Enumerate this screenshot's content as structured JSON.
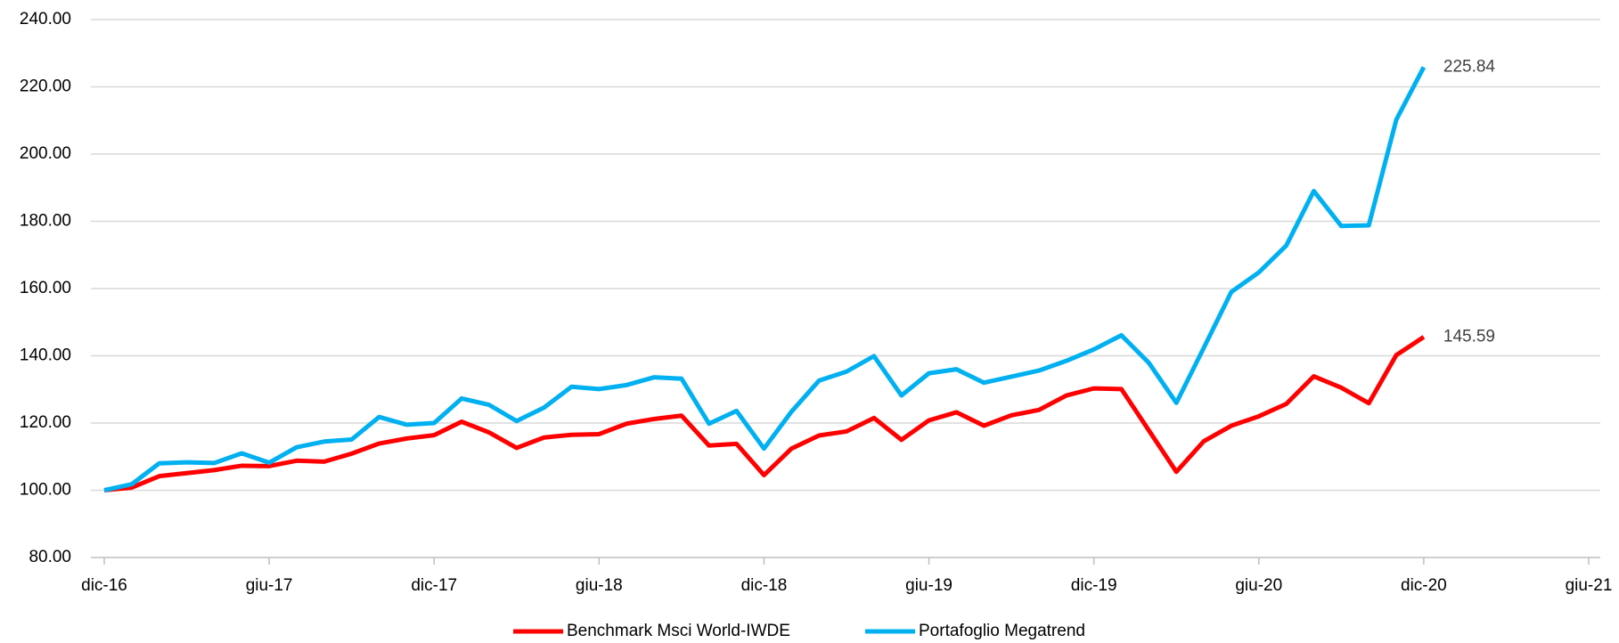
{
  "chart_data": {
    "type": "line",
    "x": [
      0,
      1,
      2,
      3,
      4,
      5,
      6,
      7,
      8,
      9,
      10,
      11,
      12,
      13,
      14,
      15,
      16,
      17,
      18,
      19,
      20,
      21,
      22,
      23,
      24,
      25,
      26,
      27,
      28,
      29,
      30,
      31,
      32,
      33,
      34,
      35,
      36,
      37,
      38,
      39,
      40,
      41,
      42,
      43,
      44,
      45,
      46,
      47,
      48
    ],
    "xlim": [
      0,
      54
    ],
    "xticks": [
      {
        "value": 0,
        "label": "dic-16"
      },
      {
        "value": 6,
        "label": "giu-17"
      },
      {
        "value": 12,
        "label": "dic-17"
      },
      {
        "value": 18,
        "label": "giu-18"
      },
      {
        "value": 24,
        "label": "dic-18"
      },
      {
        "value": 30,
        "label": "giu-19"
      },
      {
        "value": 36,
        "label": "dic-19"
      },
      {
        "value": 42,
        "label": "giu-20"
      },
      {
        "value": 48,
        "label": "dic-20"
      },
      {
        "value": 54,
        "label": "giu-21"
      }
    ],
    "ylim": [
      80,
      240
    ],
    "yticks": [
      {
        "value": 80,
        "label": "80.00"
      },
      {
        "value": 100,
        "label": "100.00"
      },
      {
        "value": 120,
        "label": "120.00"
      },
      {
        "value": 140,
        "label": "140.00"
      },
      {
        "value": 160,
        "label": "160.00"
      },
      {
        "value": 180,
        "label": "180.00"
      },
      {
        "value": 200,
        "label": "200.00"
      },
      {
        "value": 220,
        "label": "220.00"
      },
      {
        "value": 240,
        "label": "240.00"
      }
    ],
    "grid": true,
    "legend": "bottom",
    "series": [
      {
        "name": "Benchmark Msci World-IWDE",
        "color": "#ff0000",
        "values": [
          100,
          100.8,
          104.2,
          105.1,
          106,
          107.3,
          107.2,
          108.8,
          108.5,
          110.9,
          113.9,
          115.4,
          116.4,
          120.4,
          117.2,
          112.6,
          115.7,
          116.5,
          116.7,
          119.8,
          121.2,
          122.2,
          113.3,
          113.8,
          104.5,
          112.4,
          116.3,
          117.5,
          121.5,
          115,
          120.8,
          123.2,
          119.2,
          122.3,
          123.9,
          128.2,
          130.3,
          130.1,
          117.8,
          105.5,
          114.6,
          119.2,
          122,
          125.7,
          133.9,
          130.5,
          125.9,
          140.2,
          145.59
        ]
      },
      {
        "name": "Portafoglio Megatrend",
        "color": "#00b0f0",
        "values": [
          100,
          101.8,
          108,
          108.3,
          108.1,
          111,
          108.2,
          112.8,
          114.5,
          115.1,
          121.8,
          119.5,
          120,
          127.3,
          125.4,
          120.6,
          124.6,
          130.8,
          130.1,
          131.3,
          133.6,
          133.2,
          119.8,
          123.6,
          112.4,
          123.4,
          132.6,
          135.3,
          139.9,
          128.2,
          134.8,
          136,
          132,
          133.8,
          135.6,
          138.5,
          141.9,
          146.1,
          137.9,
          126,
          142.4,
          159,
          164.8,
          172.8,
          189,
          178.6,
          178.8,
          210.2,
          225.84
        ]
      }
    ]
  }
}
